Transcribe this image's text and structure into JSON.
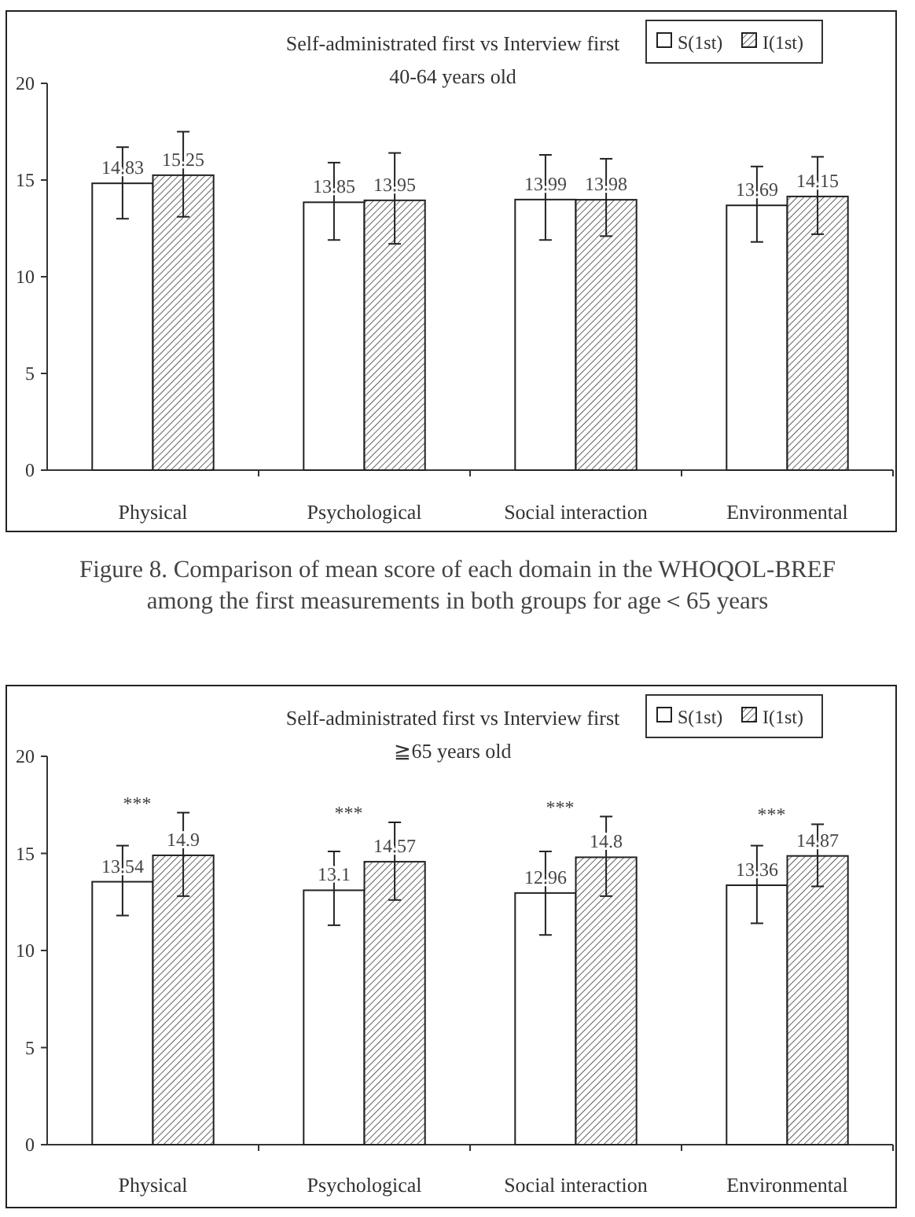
{
  "chart_data": [
    {
      "type": "bar",
      "title": "Self-administrated first vs Interview first",
      "subtitle": "40-64 years old",
      "categories": [
        "Physical",
        "Psychological",
        "Social interaction",
        "Environmental"
      ],
      "series": [
        {
          "name": "S(1st)",
          "color": "#ffffff",
          "values": [
            14.83,
            13.85,
            13.99,
            13.69
          ],
          "errors": [
            [
              13.0,
              16.7
            ],
            [
              11.9,
              15.9
            ],
            [
              11.9,
              16.3
            ],
            [
              11.8,
              15.7
            ]
          ]
        },
        {
          "name": "I(1st)",
          "color": "#222222",
          "values": [
            15.25,
            13.95,
            13.98,
            14.15
          ],
          "errors": [
            [
              13.1,
              17.5
            ],
            [
              11.7,
              16.4
            ],
            [
              12.1,
              16.1
            ],
            [
              12.2,
              16.2
            ]
          ]
        }
      ],
      "ylim": [
        0,
        20
      ],
      "yticks": [
        0,
        5,
        10,
        15,
        20
      ],
      "grid": false,
      "legend": "top right",
      "data_labels": true,
      "annotations": [
        "Figure 8. Comparison of mean score of each domain in the WHOQOL-BREF\namong the first measurements in both groups for age＜65 years"
      ]
    },
    {
      "type": "bar",
      "title": "Self-administrated first vs Interview first",
      "subtitle": "≧65 years old",
      "categories": [
        "Physical",
        "Psychological",
        "Social interaction",
        "Environmental"
      ],
      "series": [
        {
          "name": "S(1st)",
          "color": "#ffffff",
          "values": [
            13.54,
            13.1,
            12.96,
            13.36
          ],
          "errors": [
            [
              11.8,
              15.4
            ],
            [
              11.3,
              15.1
            ],
            [
              10.8,
              15.1
            ],
            [
              11.4,
              15.4
            ]
          ]
        },
        {
          "name": "I(1st)",
          "color": "#222222",
          "values": [
            14.9,
            14.57,
            14.8,
            14.87
          ],
          "errors": [
            [
              12.8,
              17.1
            ],
            [
              12.6,
              16.6
            ],
            [
              12.8,
              16.9
            ],
            [
              13.3,
              16.5
            ]
          ]
        }
      ],
      "ylim": [
        0,
        20
      ],
      "yticks": [
        0,
        5,
        10,
        15,
        20
      ],
      "grid": false,
      "legend": "top right",
      "data_labels": true,
      "annotations": [
        "***",
        "***",
        "***",
        "***"
      ]
    }
  ]
}
